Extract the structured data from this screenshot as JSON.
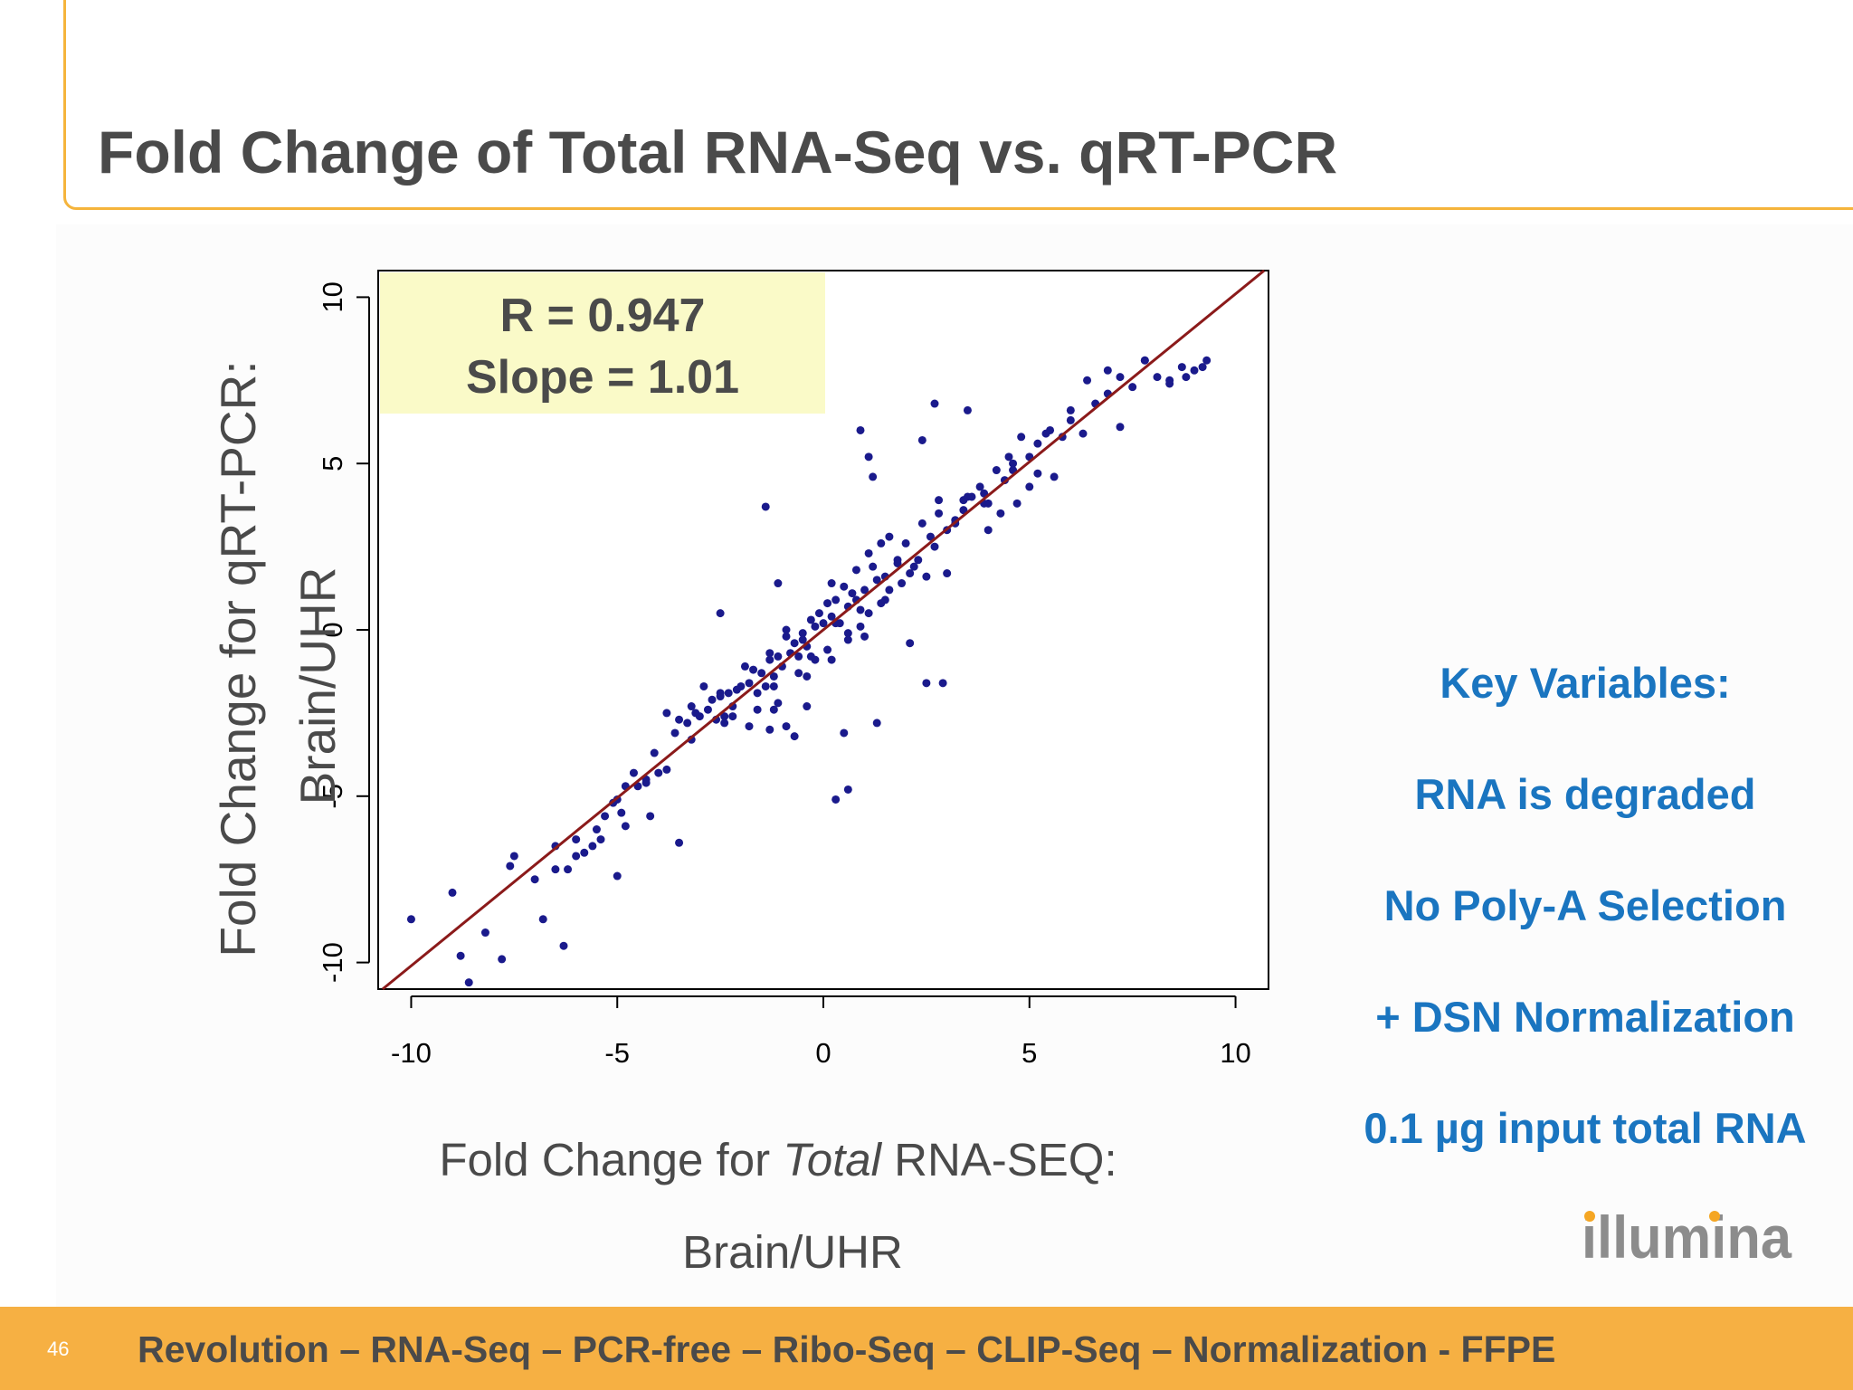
{
  "slide": {
    "title": "Fold Change of Total RNA-Seq vs. qRT-PCR",
    "page_number": "46",
    "footer": "Revolution – RNA-Seq – PCR-free – Ribo-Seq – CLIP-Seq – Normalization - FFPE",
    "logo_text": "illumina"
  },
  "key_variables": {
    "heading": "Key Variables:",
    "items": [
      "RNA is degraded",
      "No Poly-A Selection",
      "+ DSN Normalization",
      "0.1 µg input total RNA"
    ]
  },
  "chart_data": {
    "type": "scatter",
    "title": "",
    "xlabel_parts": [
      "Fold Change for ",
      "Total",
      " RNA-SEQ:"
    ],
    "xlabel_line2": "Brain/UHR",
    "ylabel_line1": "Fold Change for qRT-PCR:",
    "ylabel_line2": "Brain/UHR",
    "xlim": [
      -10.8,
      10.8
    ],
    "ylim": [
      -10.8,
      10.8
    ],
    "x_ticks": [
      -10,
      -5,
      0,
      5,
      10
    ],
    "y_ticks": [
      -10,
      -5,
      0,
      5,
      10
    ],
    "grid": false,
    "annotation": {
      "r": "R = 0.947",
      "slope": "Slope = 1.01"
    },
    "regression": {
      "slope": 1.01,
      "intercept": 0.0
    },
    "colors": {
      "points": "#1a1a8c",
      "line": "#8b1a1a",
      "annotation_bg": "#fafac8"
    },
    "series": [
      {
        "x": [
          -10,
          -9,
          -8.8,
          -8.6,
          -8.2,
          -7.8,
          -7.5,
          -7,
          -6.8,
          -6.5,
          -6.3,
          -6.2,
          -6,
          -5.8,
          -5.6,
          -5.5,
          -5.3,
          -5.1,
          -5,
          -4.9,
          -4.8,
          -4.6,
          -4.5,
          -4.3,
          -4.1,
          -4,
          -3.8,
          -3.6,
          -3.5,
          -3.3,
          -3.2,
          -3,
          -2.9,
          -2.8,
          -2.7,
          -2.6,
          -2.5,
          -2.4,
          -2.3,
          -2.2,
          -2.1,
          -2,
          -1.9,
          -1.8,
          -1.7,
          -1.6,
          -1.5,
          -1.4,
          -1.3,
          -1.2,
          -1.1,
          -1,
          -0.9,
          -0.8,
          -0.7,
          -0.6,
          -0.5,
          -0.4,
          -0.3,
          -0.2,
          -0.1,
          0,
          0.1,
          0.2,
          0.3,
          0.4,
          0.5,
          0.6,
          0.7,
          0.8,
          0.9,
          1,
          1.1,
          1.2,
          1.3,
          1.4,
          1.5,
          1.6,
          1.8,
          2,
          2.2,
          2.4,
          2.6,
          2.8,
          3,
          3.2,
          3.4,
          3.6,
          3.8,
          4,
          4.2,
          4.4,
          4.6,
          4.8,
          5,
          5.2,
          5.5,
          5.8,
          6,
          6.3,
          6.6,
          6.9,
          7.2,
          7.5,
          7.8,
          8.1,
          8.4,
          8.7,
          9,
          9.3,
          -7.6,
          -6.5,
          -5,
          -4.3,
          -3.1,
          -2.5,
          -1.3,
          -1.1,
          -0.9,
          -0.5,
          -0.2,
          0.3,
          0.6,
          0.8,
          1,
          1.5,
          1.8,
          2.1,
          2.5,
          2.8,
          3.2,
          3.5,
          3.9,
          4.3,
          4.6,
          5,
          5.4,
          5.6,
          6,
          6.4,
          6.9,
          7.2,
          7.8,
          8.4,
          8.8,
          9.2,
          -2.5,
          -1.4,
          -0.7,
          0.2,
          0.5,
          0.9,
          1.2,
          2.7,
          3,
          -1.2,
          0.3,
          0.6,
          2.5,
          2.9,
          4,
          4.7,
          -1.3,
          1.3,
          2.1,
          -3.2,
          -2.4,
          -1.8,
          -1.6,
          -1.1,
          -0.6,
          -0.3,
          0.1,
          0.6,
          1.1,
          1.6,
          -3.8,
          -2.2,
          -1.2,
          -0.4,
          0.2,
          0.9,
          1.4,
          1.9,
          2.3,
          2.7,
          3.4,
          3.9,
          4.5,
          5.2,
          -6,
          -5.4,
          -4.8,
          -4.2,
          -3.5,
          1.1,
          2.4,
          3.5,
          -0.9,
          -0.4
        ],
        "y": [
          -8.7,
          -7.9,
          -9.8,
          -10.6,
          -9.1,
          -9.9,
          -6.8,
          -7.5,
          -8.7,
          -6.5,
          -9.5,
          -7.2,
          -6.3,
          -6.7,
          -6.5,
          -6,
          -5.6,
          -5.2,
          -5.1,
          -5.5,
          -4.7,
          -4.3,
          -4.7,
          -4.5,
          -3.7,
          -4.3,
          -2.5,
          -3.1,
          -2.7,
          -2.8,
          -2.3,
          -2.6,
          -1.7,
          -2.4,
          -2.1,
          -2.7,
          -2,
          -2.6,
          -1.9,
          -2.3,
          -1.8,
          -1.7,
          -1.1,
          -1.6,
          -1.2,
          -1.9,
          -1.3,
          -1.7,
          -0.9,
          -1.4,
          -0.8,
          -1.1,
          -0.2,
          -0.7,
          -0.4,
          -0.8,
          -0.3,
          -0.5,
          0.3,
          0.1,
          0.5,
          0.2,
          0.8,
          0.4,
          0.9,
          0.2,
          1.3,
          0.7,
          1.1,
          1.8,
          0.6,
          1.2,
          2.3,
          1.9,
          1.5,
          2.6,
          1.6,
          2.8,
          2.1,
          2.6,
          1.9,
          3.2,
          2.8,
          3.5,
          3,
          3.3,
          3.9,
          4,
          4.3,
          3.8,
          4.8,
          4.5,
          5,
          5.8,
          5.2,
          4.7,
          6,
          5.8,
          6.3,
          5.9,
          6.8,
          7.1,
          7.6,
          7.3,
          8.1,
          7.6,
          7.4,
          7.9,
          7.8,
          8.1,
          -7.1,
          -7.2,
          -7.4,
          -4.6,
          -2.5,
          -1.9,
          -0.7,
          1.4,
          0,
          -0.1,
          -0.9,
          0.2,
          -0.3,
          0.9,
          -0.2,
          0.9,
          2,
          1.7,
          1.6,
          3.9,
          3.2,
          4,
          4.1,
          3.5,
          4.8,
          4.3,
          5.9,
          4.6,
          6.6,
          7.5,
          7.8,
          6.1,
          8.1,
          7.5,
          7.6,
          7.9,
          0.5,
          3.7,
          -3.2,
          1.4,
          -3.1,
          6,
          4.6,
          6.8,
          1.7,
          -2.4,
          -5.1,
          -4.8,
          -1.6,
          -1.6,
          3,
          3.8,
          -3,
          -2.8,
          -0.4,
          -3.3,
          -2.8,
          -2.9,
          -2.4,
          -2.2,
          -1.3,
          -0.8,
          -0.6,
          -0.1,
          0.5,
          1.2,
          -4.2,
          -2.6,
          -1.7,
          -1.4,
          -0.9,
          0.1,
          0.8,
          1.4,
          2.1,
          2.5,
          3.6,
          3.8,
          5.2,
          5.6,
          -6.8,
          -6.3,
          -5.9,
          -5.6,
          -6.4,
          5.2,
          5.7,
          6.6,
          -2.9,
          -2.3
        ]
      }
    ]
  }
}
